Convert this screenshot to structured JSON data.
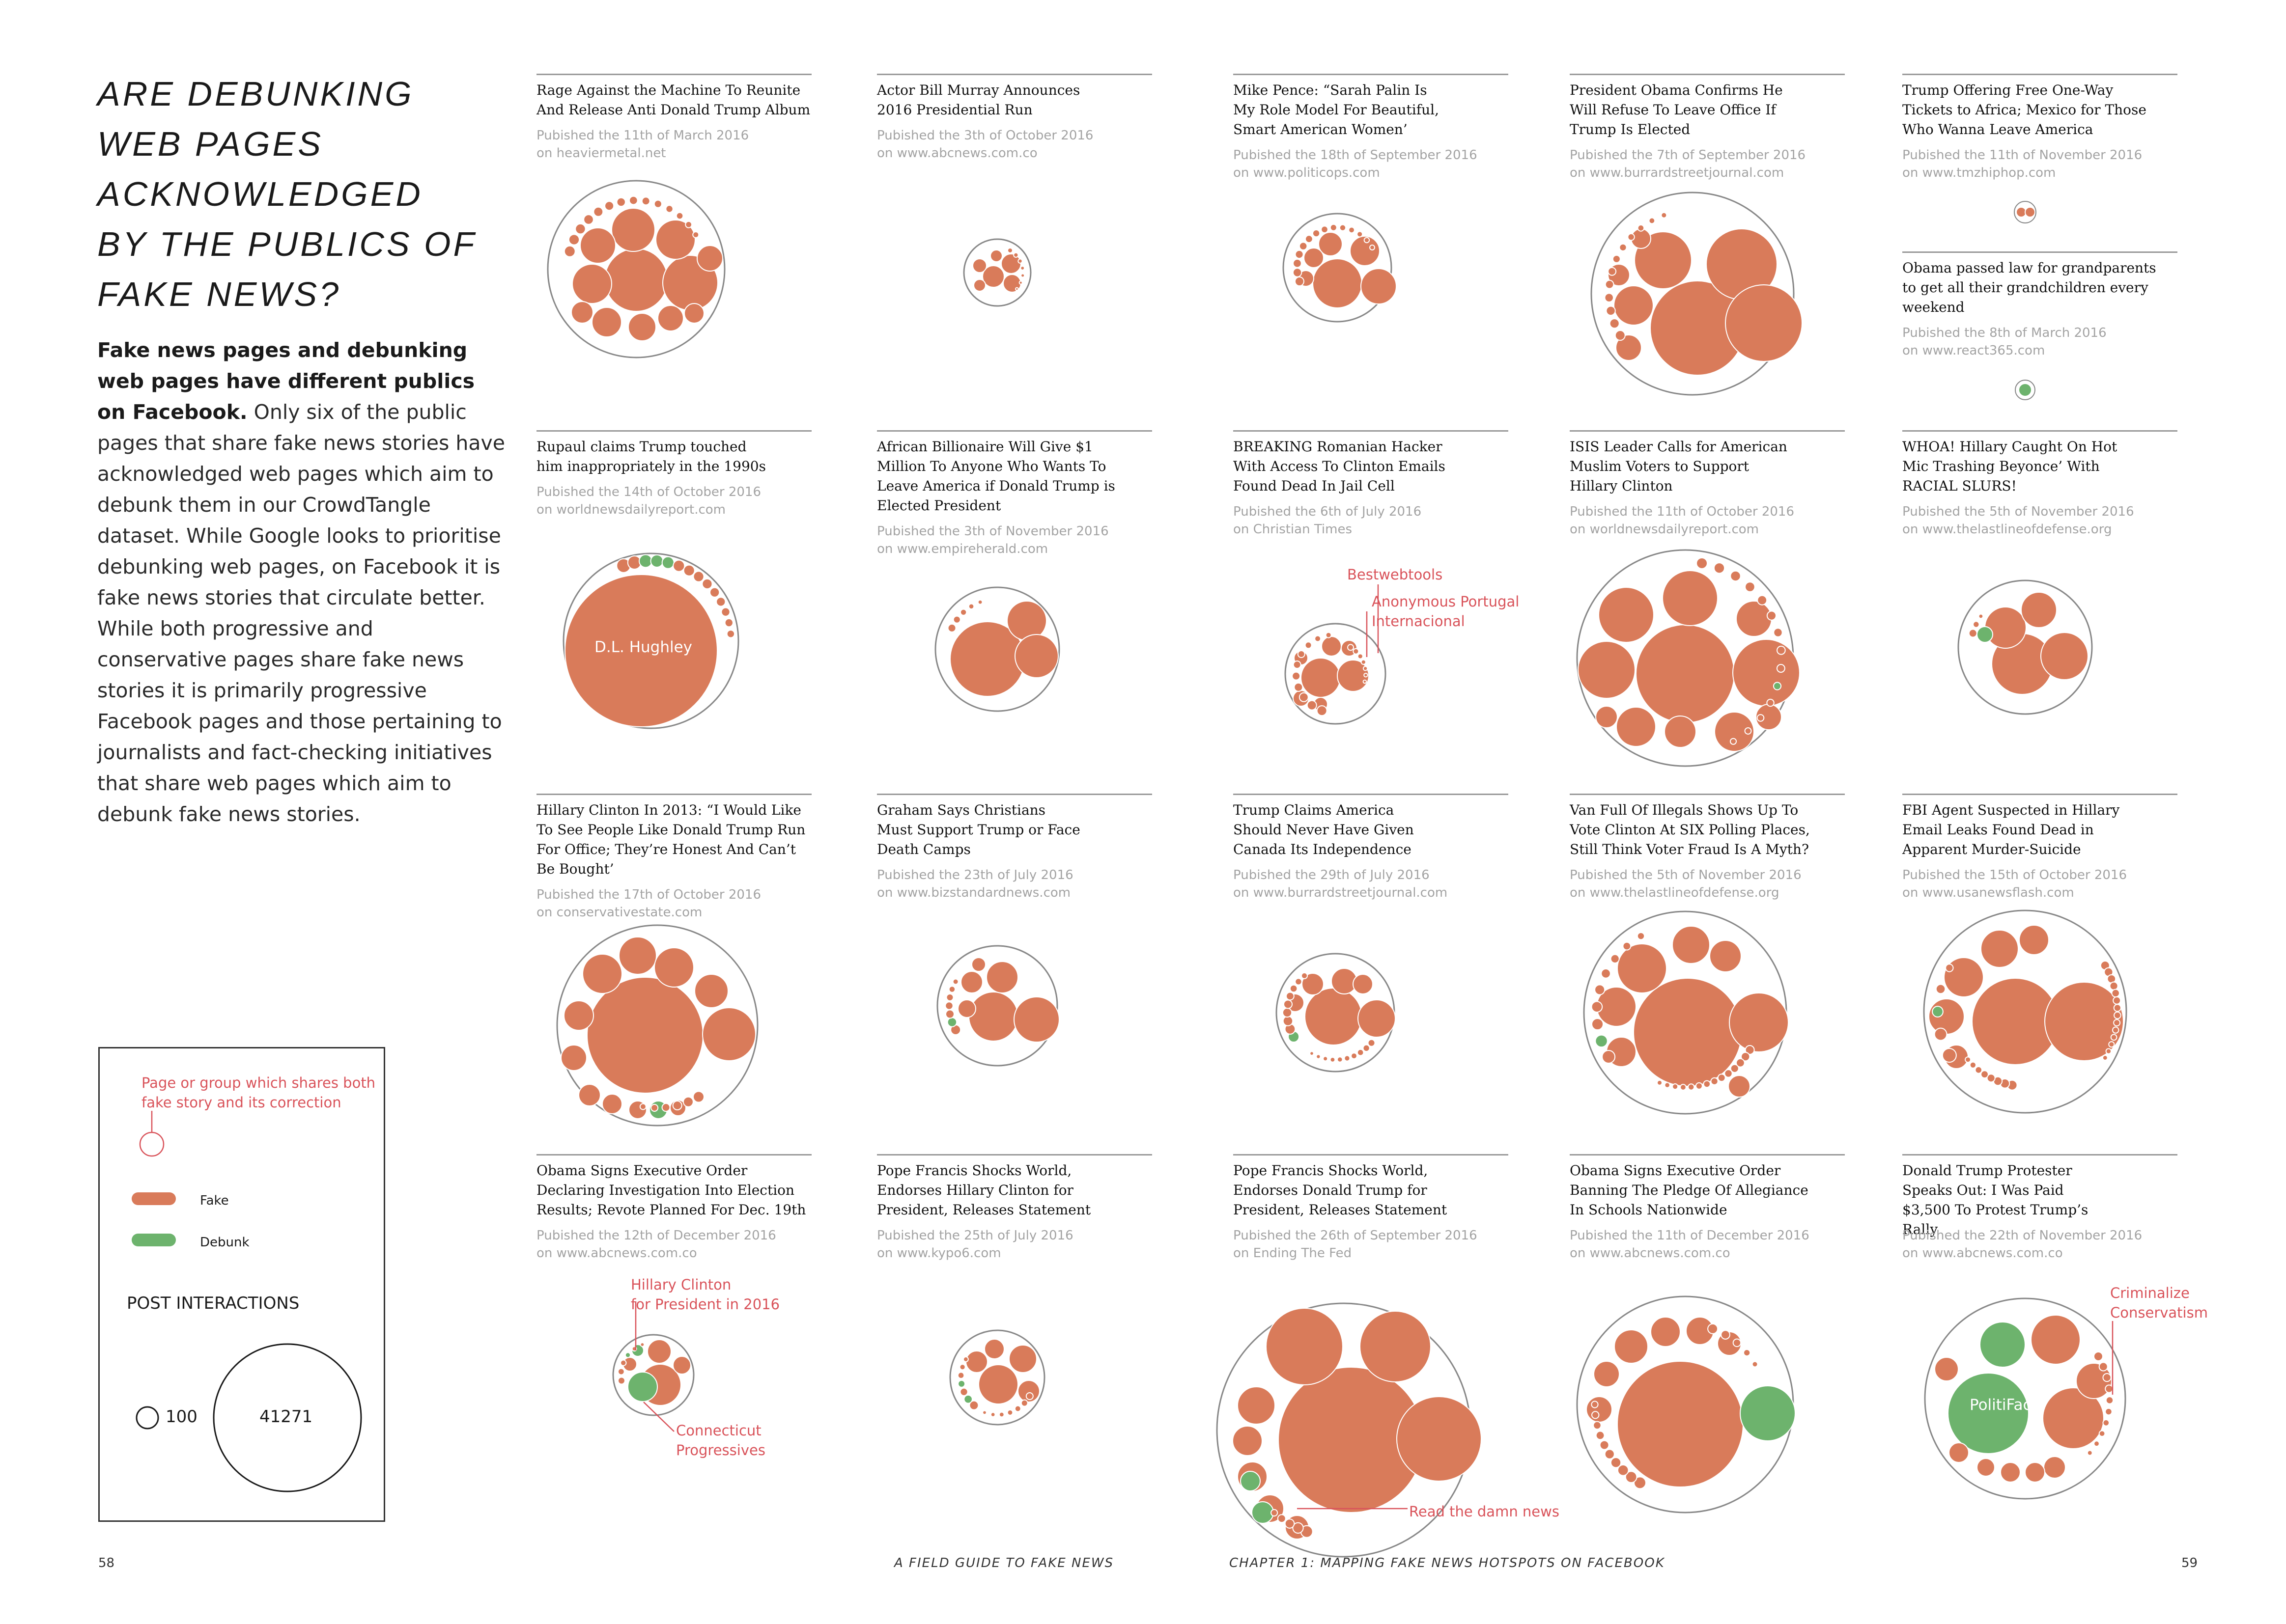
{
  "headline": {
    "line1": "ARE DEBUNKING",
    "line2": "WEB PAGES",
    "line3": "ACKNOWLEDGED",
    "line4": "BY THE PUBLICS OF",
    "line5": "FAKE NEWS?"
  },
  "intro": {
    "bold": "Fake news pages and debunking web pages have different publics on Facebook.",
    "body": " Only six of the public pages that share fake news stories have acknowledged web pages which aim to debunk them in our CrowdTangle dataset. While Google looks to prioritise debunking web pages, on Facebook it is fake news stories that circulate better. While both progressive and conservative pages share fake news stories it is primarily progressive Facebook pages and those pertaining to journalists and fact-checking initiatives that share web pages which aim to debunk fake news stories."
  },
  "legend": {
    "both_label_1": "Page or group which shares both",
    "both_label_2": "fake story and its correction",
    "fake_label": "Fake",
    "debunk_label": "Debunk",
    "post_interactions": "POST INTERACTIONS",
    "small_value": "100",
    "large_value": "41271"
  },
  "colors": {
    "fake": "#d97b5a",
    "debunk": "#6db36d",
    "outline": "#888888",
    "annotation": "#d9535a"
  },
  "footer": {
    "left_page": "58",
    "center_left": "A FIELD GUIDE TO FAKE NEWS",
    "center_right": "CHAPTER 1: MAPPING FAKE NEWS HOTSPOTS  ON FACEBOOK",
    "right_page": "59"
  },
  "chart_data": {
    "type": "packed-bubble",
    "title": "ARE DEBUNKING WEB PAGES ACKNOWLEDGED BY THE PUBLICS OF FAKE NEWS?",
    "size_measure": "POST INTERACTIONS",
    "size_scale": [
      100,
      41271
    ],
    "categories": [
      "Fake",
      "Debunk"
    ],
    "stories": [
      {
        "title": "Rage Against the Machine To Reunite And Release Anti Donald Trump Album",
        "published": "Pubished the 11th of March 2016",
        "source": "on heaviermetal.net",
        "debunk_pages": 0
      },
      {
        "title": "Actor Bill Murray Announces 2016 Presidential Run",
        "published": "Pubished the 3th of October 2016",
        "source": "on www.abcnews.com.co",
        "debunk_pages": 0
      },
      {
        "title": "Mike Pence: “Sarah Palin Is My Role Model For Beautiful, Smart American Women’",
        "published": "Pubished the 18th of September 2016",
        "source": "on www.politicops.com",
        "debunk_pages": 0
      },
      {
        "title": "President Obama Confirms He Will Refuse To Leave Office If Trump Is Elected",
        "published": "Pubished the 7th of September 2016",
        "source": "on www.burrardstreetjournal.com",
        "debunk_pages": 0
      },
      {
        "title": "Trump Offering Free One-Way Tickets to Africa; Mexico for Those Who Wanna Leave America",
        "published": "Pubished the 11th of November 2016",
        "source": "on www.tmzhiphop.com",
        "debunk_pages": 0
      },
      {
        "title": "Obama passed law for grandparents to get all their grandchildren every weekend",
        "published": "Pubished the 8th of March 2016",
        "source": "on www.react365.com",
        "debunk_pages": 1
      },
      {
        "title": "Rupaul claims Trump touched him inappropriately in the 1990s",
        "published": "Pubished the 14th of October 2016",
        "source": "on worldnewsdailyreport.com",
        "debunk_pages": 4,
        "annotations": [
          "D.L. Hughley"
        ]
      },
      {
        "title": "African Billionaire Will Give $1 Million To Anyone Who Wants To Leave America if Donald Trump is Elected President",
        "published": "Pubished the 3th of November 2016",
        "source": "on www.empireherald.com",
        "debunk_pages": 0
      },
      {
        "title": "BREAKING Romanian Hacker With Access To Clinton Emails Found Dead In Jail Cell",
        "published": "Pubished the 6th of July 2016",
        "source": "on Christian Times",
        "debunk_pages": 0,
        "annotations": [
          "Bestwebtools",
          "Anonymous Portugal Internacional"
        ]
      },
      {
        "title": "ISIS Leader Calls for American Muslim Voters to Support Hillary Clinton",
        "published": "Pubished the 11th of October 2016",
        "source": "on worldnewsdailyreport.com",
        "debunk_pages": 2
      },
      {
        "title": "WHOA! Hillary Caught On Hot Mic Trashing Beyonce’ With RACIAL SLURS!",
        "published": "Pubished the 5th of November 2016",
        "source": "on www.thelastlineofdefense.org",
        "debunk_pages": 1
      },
      {
        "title": "Hillary Clinton In 2013: “I Would Like To See People Like Donald Trump Run For Office; They’re Honest And Can’t Be Bought’",
        "published": "Pubished the 17th of October 2016",
        "source": "on conservativestate.com",
        "debunk_pages": 1
      },
      {
        "title": "Graham Says Christians Must Support Trump or Face Death Camps",
        "published": "Pubished the 23th of July 2016",
        "source": "on www.bizstandardnews.com",
        "debunk_pages": 1
      },
      {
        "title": "Trump Claims America Should Never Have Given Canada Its Independence",
        "published": "Pubished the 29th of July 2016",
        "source": "on www.burrardstreetjournal.com",
        "debunk_pages": 1
      },
      {
        "title": "Van Full Of Illegals Shows Up To Vote Clinton At SIX Polling Places, Still Think Voter Fraud Is A Myth?",
        "published": "Pubished the 5th of November 2016",
        "source": "on www.thelastlineofdefense.org",
        "debunk_pages": 1
      },
      {
        "title": "FBI Agent Suspected in Hillary Email Leaks Found Dead in Apparent Murder-Suicide",
        "published": "Pubished the 15th of October 2016",
        "source": "on www.usanewsflash.com",
        "debunk_pages": 1
      },
      {
        "title": "Obama Signs Executive Order Declaring Investigation Into Election Results; Revote Planned For Dec. 19th",
        "published": "Pubished the 12th of December 2016",
        "source": "on www.abcnews.com.co",
        "debunk_pages": 2,
        "annotations": [
          "Hillary Clinton for President in 2016",
          "Connecticut Progressives"
        ]
      },
      {
        "title": "Pope Francis Shocks World, Endorses Hillary Clinton for President, Releases Statement",
        "published": "Pubished the 25th of July 2016",
        "source": "on www.kypo6.com",
        "debunk_pages": 2
      },
      {
        "title": "Pope Francis Shocks World, Endorses Donald Trump for President, Releases Statement",
        "published": "Pubished the 26th of September 2016",
        "source": "on Ending The Fed",
        "debunk_pages": 2,
        "annotations": [
          "Read the damn news"
        ]
      },
      {
        "title": "Obama Signs Executive Order Banning The Pledge Of Allegiance In Schools Nationwide",
        "published": "Pubished the 11th of December 2016",
        "source": "on www.abcnews.com.co",
        "debunk_pages": 1
      },
      {
        "title": "Donald Trump Protester Speaks Out: I Was Paid $3,500 To Protest Trump’s Rally",
        "published": "Pubished the 22th of November 2016",
        "source": "on www.abcnews.com.co",
        "debunk_pages": 2,
        "annotations": [
          "PolitiFact",
          "Criminalize Conservatism"
        ]
      }
    ]
  },
  "annotations": {
    "dl_hughley": "D.L. Hughley",
    "bestwebtools": "Bestwebtools",
    "anon_1": "Anonymous Portugal",
    "anon_2": "Internacional",
    "hc_1": "Hillary Clinton",
    "hc_2": "for President in 2016",
    "ct_1": "Connecticut",
    "ct_2": "Progressives",
    "read_news": "Read the damn news",
    "politifact": "PolitiFact",
    "crim_1": "Criminalize",
    "crim_2": "Conservatism"
  }
}
